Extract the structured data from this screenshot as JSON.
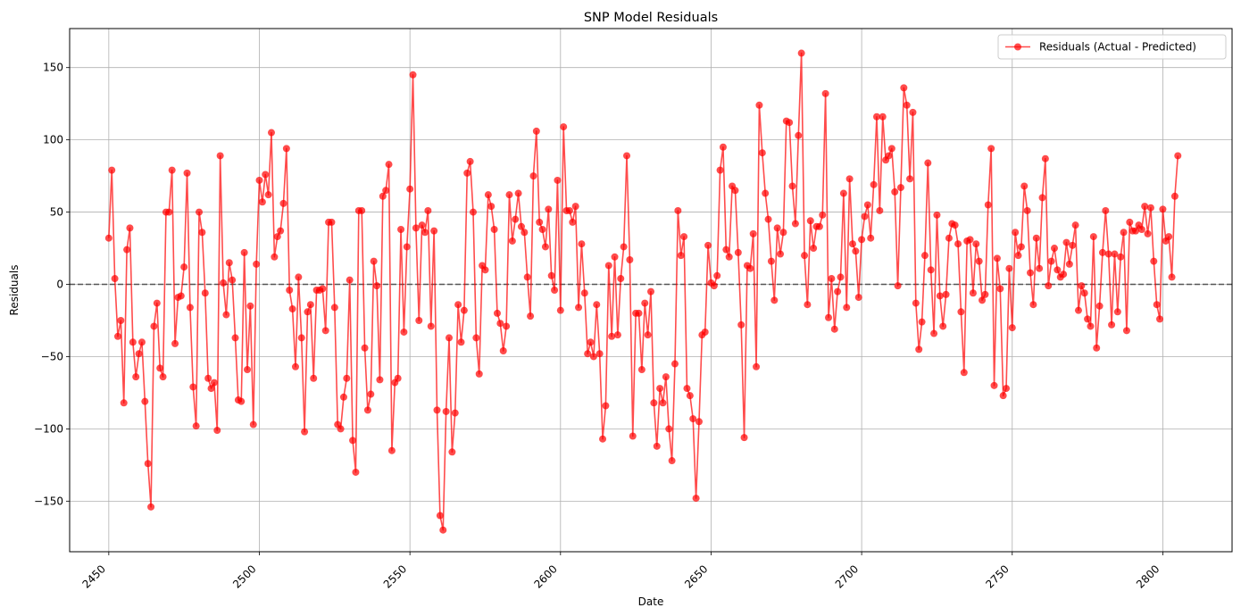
{
  "chart_data": {
    "type": "line",
    "title": "SNP Model Residuals",
    "xlabel": "Date",
    "ylabel": "Residuals",
    "xlim": [
      2437,
      2823
    ],
    "ylim": [
      -185,
      177
    ],
    "xticks": [
      2450,
      2500,
      2550,
      2600,
      2650,
      2700,
      2750,
      2800
    ],
    "yticks": [
      -150,
      -100,
      -50,
      0,
      50,
      100,
      150
    ],
    "grid": true,
    "legend_position": "top-right",
    "reference_line": {
      "y": 0,
      "style": "dashed",
      "color": "#555555"
    },
    "series": [
      {
        "name": "Residuals (Actual - Predicted)",
        "color": "#ff0000",
        "marker": "circle",
        "x_start": 2450,
        "x_step": 1,
        "values": [
          32,
          79,
          4,
          -36,
          -25,
          -82,
          24,
          39,
          -40,
          -64,
          -48,
          -40,
          -81,
          -124,
          -154,
          -29,
          -13,
          -58,
          -64,
          50,
          50,
          79,
          -41,
          -9,
          -8,
          12,
          77,
          -16,
          -71,
          -98,
          50,
          36,
          -6,
          -65,
          -72,
          -68,
          -101,
          89,
          1,
          -21,
          15,
          3,
          -37,
          -80,
          -81,
          22,
          -59,
          -15,
          -97,
          14,
          72,
          57,
          76,
          62,
          105,
          19,
          33,
          37,
          56,
          94,
          -4,
          -17,
          -57,
          5,
          -37,
          -102,
          -19,
          -14,
          -65,
          -4,
          -4,
          -3,
          -32,
          43,
          43,
          -16,
          -97,
          -100,
          -78,
          -65,
          3,
          -108,
          -130,
          51,
          51,
          -44,
          -87,
          -76,
          16,
          -1,
          -66,
          61,
          65,
          83,
          -115,
          -68,
          -65,
          38,
          -33,
          26,
          66,
          145,
          39,
          -25,
          41,
          36,
          51,
          -29,
          37,
          -87,
          -160,
          -170,
          -88,
          -37,
          -116,
          -89,
          -14,
          -40,
          -18,
          77,
          85,
          50,
          -37,
          -62,
          13,
          10,
          62,
          54,
          38,
          -20,
          -27,
          -46,
          -29,
          62,
          30,
          45,
          63,
          40,
          36,
          5,
          -22,
          75,
          106,
          43,
          38,
          26,
          52,
          6,
          -4,
          72,
          -18,
          109,
          51,
          51,
          43,
          54,
          -16,
          28,
          -6,
          -48,
          -40,
          -50,
          -14,
          -48,
          -107,
          -84,
          13,
          -36,
          19,
          -35,
          4,
          26,
          89,
          17,
          -105,
          -20,
          -20,
          -59,
          -13,
          -35,
          -5,
          -82,
          -112,
          -72,
          -82,
          -64,
          -100,
          -122,
          -55,
          51,
          20,
          33,
          -72,
          -77,
          -93,
          -148,
          -95,
          -35,
          -33,
          27,
          1,
          -1,
          6,
          79,
          95,
          24,
          19,
          68,
          65,
          22,
          -28,
          -106,
          13,
          11,
          35,
          -57,
          124,
          91,
          63,
          45,
          16,
          -11,
          39,
          21,
          36,
          113,
          112,
          68,
          42,
          103,
          160,
          20,
          -14,
          44,
          25,
          40,
          40,
          48,
          132,
          -23,
          4,
          -31,
          -5,
          5,
          63,
          -16,
          73,
          28,
          23,
          -9,
          31,
          47,
          55,
          32,
          69,
          116,
          51,
          116,
          86,
          89,
          94,
          64,
          -1,
          67,
          136,
          124,
          73,
          119,
          -13,
          -45,
          -26,
          20,
          84,
          10,
          -34,
          48,
          -8,
          -29,
          -7,
          32,
          42,
          41,
          28,
          -19,
          -61,
          30,
          31,
          -6,
          28,
          16,
          -11,
          -7,
          55,
          94,
          -70,
          18,
          -3,
          -77,
          -72,
          11,
          -30,
          36,
          20,
          26,
          68,
          51,
          8,
          -14,
          32,
          11,
          60,
          87,
          -1,
          16,
          25,
          10,
          5,
          7,
          29,
          14,
          27,
          41,
          -18,
          -1,
          -6,
          -24,
          -29,
          33,
          -44,
          -15,
          22,
          51,
          21,
          -28,
          21,
          -19,
          19,
          36,
          -32,
          43,
          37,
          37,
          41,
          38,
          54,
          35,
          53,
          16,
          -14,
          -24,
          52,
          30,
          33,
          5,
          61,
          89
        ]
      }
    ]
  }
}
